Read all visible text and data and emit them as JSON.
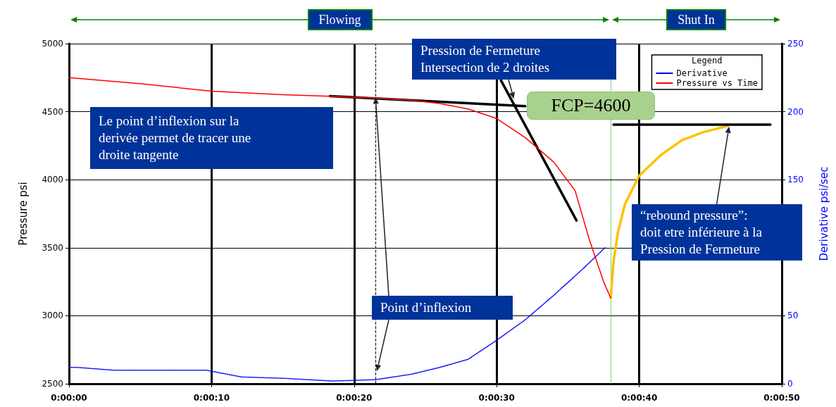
{
  "chart_data": {
    "type": "line",
    "ylabel": "Pressure psi",
    "y2label": "Derivative psi/sec",
    "legend_title": "Legend",
    "xlim": [
      0,
      50
    ],
    "xticks": [
      {
        "value": 0,
        "label": "0:00:00"
      },
      {
        "value": 10,
        "label": "0:00:10"
      },
      {
        "value": 20,
        "label": "0:00:20"
      },
      {
        "value": 30,
        "label": "0:00:30"
      },
      {
        "value": 40,
        "label": "0:00:40"
      },
      {
        "value": 50,
        "label": "0:00:50"
      }
    ],
    "ylim": [
      2500,
      5000
    ],
    "yticks": [
      2500,
      3000,
      3500,
      4000,
      4500,
      5000
    ],
    "y2lim": [
      0,
      250
    ],
    "y2ticks": [
      0,
      50,
      150,
      200,
      250
    ],
    "grid": true,
    "legend": "top right",
    "marker": "none",
    "series": [
      {
        "name": "Derivative",
        "color": "#0000ff",
        "axis": "y2",
        "line_style": "dotted",
        "x": [
          0,
          0.6,
          3.1,
          9.6,
          10.6,
          12.1,
          15.1,
          18.5,
          21.5,
          24,
          26,
          28,
          30,
          32,
          34,
          36,
          37.6
        ],
        "values": [
          12,
          12,
          10,
          10,
          8,
          5,
          4,
          2,
          3,
          7,
          12,
          18,
          32,
          47,
          65,
          84,
          100
        ]
      },
      {
        "name": "Pressure vs Time",
        "color": "#ff0000",
        "x": [
          0,
          5.1,
          10,
          15,
          18,
          21.5,
          24,
          26,
          28,
          30,
          32,
          34,
          35.5,
          36.5,
          37.5,
          38
        ],
        "values": [
          4750,
          4705,
          4650,
          4625,
          4615,
          4600,
          4585,
          4560,
          4520,
          4450,
          4310,
          4130,
          3920,
          3560,
          3250,
          3130
        ]
      },
      {
        "color": "#ffc000",
        "x": [
          38,
          38.2,
          38.5,
          39,
          40,
          41.5,
          43,
          44.5,
          46.2
        ],
        "values": [
          3130,
          3400,
          3610,
          3820,
          4030,
          4180,
          4290,
          4350,
          4395
        ]
      },
      {
        "color": "#000000",
        "x": [
          18.3,
          32
        ],
        "values": [
          4615,
          4540
        ]
      },
      {
        "color": "#000000",
        "x": [
          30.3,
          35.6
        ],
        "values": [
          4730,
          3700
        ]
      },
      {
        "color": "#000000",
        "x": [
          38.2,
          49.2
        ],
        "values": [
          4405,
          4405
        ]
      }
    ],
    "ref_lines": [
      {
        "axis": "x",
        "value": 21.5,
        "color": "#000000",
        "line_style": "dashed"
      },
      {
        "axis": "x",
        "value": 38,
        "color": "#00a000",
        "line_style": "dotted"
      }
    ],
    "annotations": [
      "Le point d’inflexion sur la\nderivée permet de tracer une\ndroite tangente",
      {
        "text": "Pression de Fermeture\nIntersection de 2 droites",
        "x": 31.2,
        "y": 4595
      },
      "FCP=4600",
      {
        "text": "Point d’inflexion",
        "x": 21.5,
        "y": 4605
      },
      {
        "text": "“rebound pressure”:\ndoit etre inférieure à la\nPression de Fermeture",
        "x": 46.3,
        "y": 4390
      },
      "Flowing",
      "Shut In"
    ]
  }
}
